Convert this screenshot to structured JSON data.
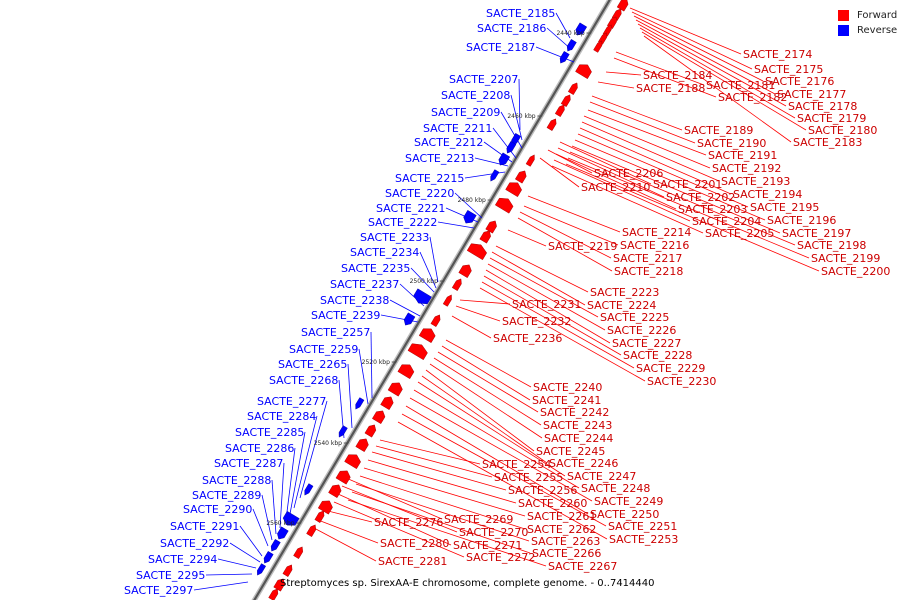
{
  "caption": "Streptomyces sp. SirexAA-E chromosome, complete genome. - 0..7414440",
  "legend": [
    {
      "label": "Forward",
      "color": "#ff0000"
    },
    {
      "label": "Reverse",
      "color": "#0000ff"
    }
  ],
  "ticks": [
    "2440 kbp",
    "2460 kbp",
    "2480 kbp",
    "2500 kbp",
    "2520 kbp",
    "2540 kbp",
    "2560 kbp"
  ],
  "reverse_genes": [
    "SACTE_2185",
    "SACTE_2186",
    "SACTE_2187",
    "SACTE_2207",
    "SACTE_2208",
    "SACTE_2209",
    "SACTE_2211",
    "SACTE_2212",
    "SACTE_2213",
    "SACTE_2215",
    "SACTE_2220",
    "SACTE_2221",
    "SACTE_2222",
    "SACTE_2233",
    "SACTE_2234",
    "SACTE_2235",
    "SACTE_2237",
    "SACTE_2238",
    "SACTE_2239",
    "SACTE_2257",
    "SACTE_2259",
    "SACTE_2265",
    "SACTE_2268",
    "SACTE_2277",
    "SACTE_2284",
    "SACTE_2285",
    "SACTE_2286",
    "SACTE_2287",
    "SACTE_2288",
    "SACTE_2289",
    "SACTE_2290",
    "SACTE_2291",
    "SACTE_2292",
    "SACTE_2294",
    "SACTE_2295",
    "SACTE_2297"
  ],
  "forward_genes": [
    "SACTE_2174",
    "SACTE_2175",
    "SACTE_2176",
    "SACTE_2177",
    "SACTE_2178",
    "SACTE_2179",
    "SACTE_2180",
    "SACTE_2181",
    "SACTE_2182",
    "SACTE_2183",
    "SACTE_2184",
    "SACTE_2188",
    "SACTE_2189",
    "SACTE_2190",
    "SACTE_2191",
    "SACTE_2192",
    "SACTE_2193",
    "SACTE_2194",
    "SACTE_2195",
    "SACTE_2196",
    "SACTE_2197",
    "SACTE_2198",
    "SACTE_2199",
    "SACTE_2200",
    "SACTE_2201",
    "SACTE_2202",
    "SACTE_2203",
    "SACTE_2204",
    "SACTE_2205",
    "SACTE_2206",
    "SACTE_2210",
    "SACTE_2214",
    "SACTE_2216",
    "SACTE_2217",
    "SACTE_2218",
    "SACTE_2219",
    "SACTE_2223",
    "SACTE_2224",
    "SACTE_2225",
    "SACTE_2226",
    "SACTE_2227",
    "SACTE_2228",
    "SACTE_2229",
    "SACTE_2230",
    "SACTE_2231",
    "SACTE_2232",
    "SACTE_2236",
    "SACTE_2240",
    "SACTE_2241",
    "SACTE_2242",
    "SACTE_2243",
    "SACTE_2244",
    "SACTE_2245",
    "SACTE_2246",
    "SACTE_2247",
    "SACTE_2248",
    "SACTE_2249",
    "SACTE_2250",
    "SACTE_2251",
    "SACTE_2253",
    "SACTE_2254",
    "SACTE_2255",
    "SACTE_2256",
    "SACTE_2260",
    "SACTE_2261",
    "SACTE_2262",
    "SACTE_2263",
    "SACTE_2266",
    "SACTE_2267",
    "SACTE_2269",
    "SACTE_2270",
    "SACTE_2271",
    "SACTE_2272",
    "SACTE_2276",
    "SACTE_2280",
    "SACTE_2281"
  ]
}
